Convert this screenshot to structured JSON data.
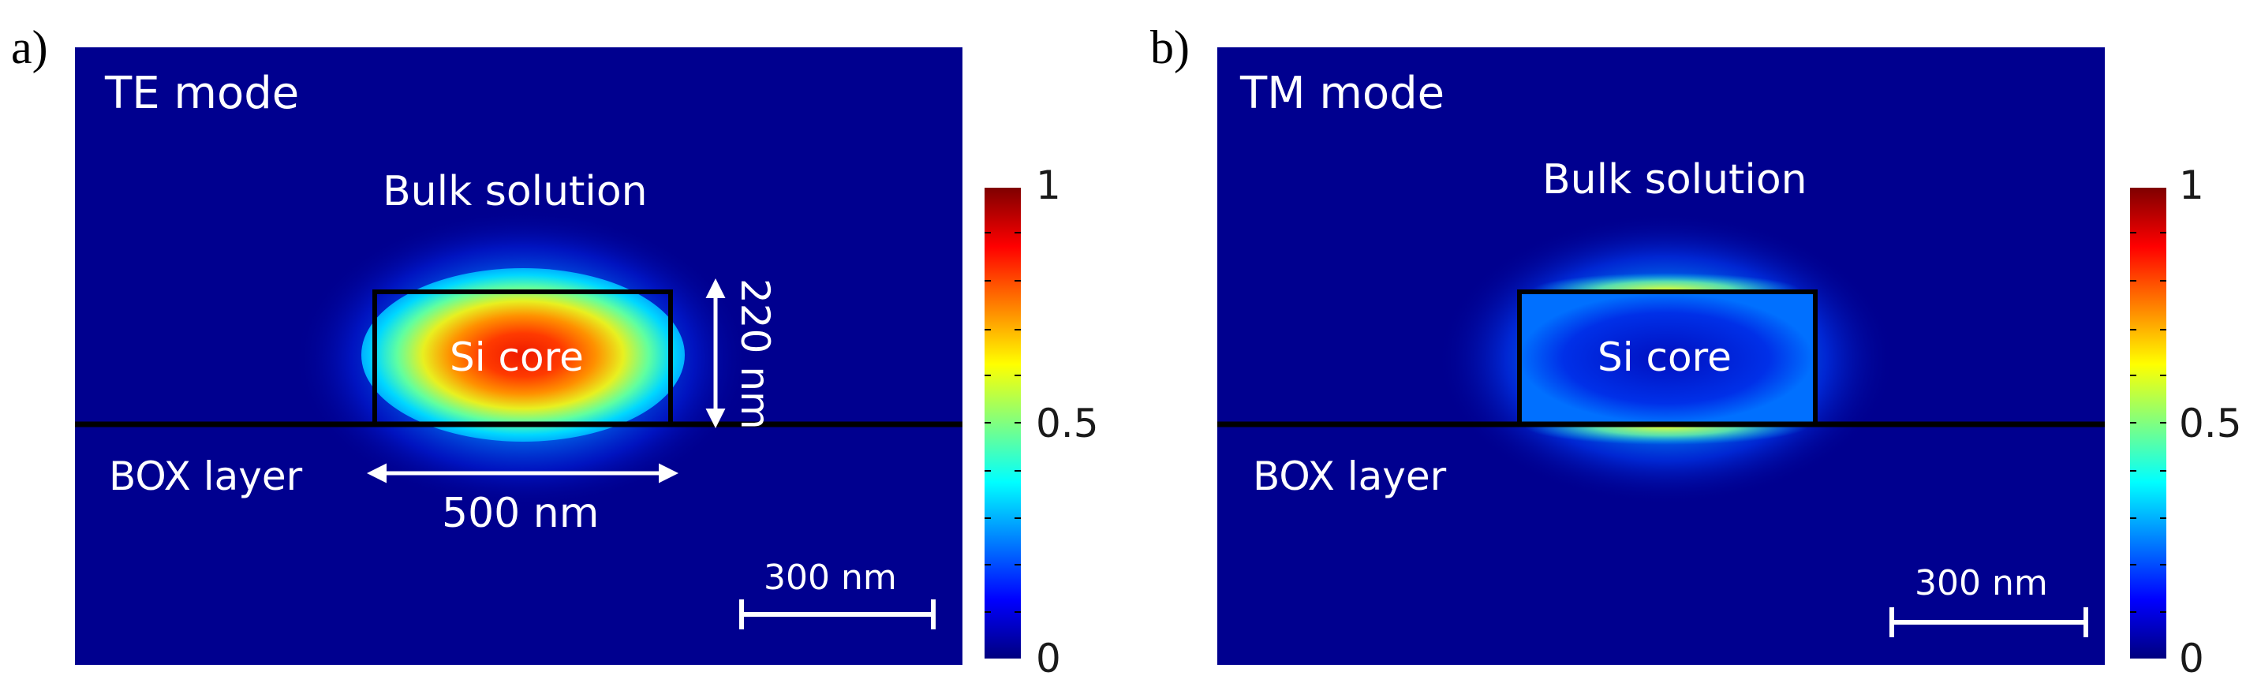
{
  "panels": [
    {
      "letter": "a)",
      "mode_label": "TE mode",
      "bulk_label": "Bulk solution",
      "core_label": "Si core",
      "box_label": "BOX layer",
      "height_label": "220 nm",
      "width_label": "500 nm",
      "scalebar_label": "300 nm"
    },
    {
      "letter": "b)",
      "mode_label": "TM mode",
      "bulk_label": "Bulk solution",
      "core_label": "Si core",
      "box_label": "BOX layer",
      "scalebar_label": "300 nm"
    }
  ],
  "colorbar": {
    "ticks": [
      "1",
      "0.5",
      "0"
    ]
  },
  "colors": {
    "background_field": "#00008f",
    "colormap": [
      "#00007f",
      "#0000ff",
      "#0080ff",
      "#00ffff",
      "#80ff80",
      "#ffff00",
      "#ff8000",
      "#ff0000",
      "#7f0000"
    ]
  }
}
